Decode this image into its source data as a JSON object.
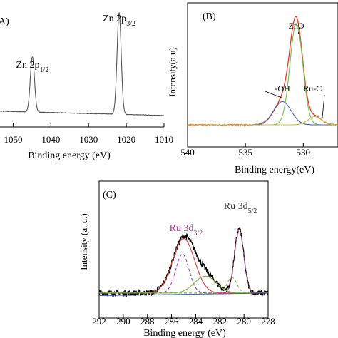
{
  "chart_data": [
    {
      "panel": "(A)",
      "panel_label": "A)",
      "type": "line",
      "xlabel": "Binding energy (eV)",
      "ylabel": "",
      "xlim": [
        1055,
        1010
      ],
      "xticks": [
        1050,
        1040,
        1030,
        1020,
        1010
      ],
      "annotations": [
        {
          "text": "Zn 2p",
          "sub": "1/2",
          "x": 1044.9
        },
        {
          "text": "Zn 2p",
          "sub": "3/2",
          "x": 1021.9
        }
      ],
      "series": [
        {
          "color": "#555555",
          "peaks": [
            {
              "center": 1044.9,
              "height": 0.5,
              "width": 0.55
            },
            {
              "center": 1021.9,
              "height": 0.92,
              "width": 0.55
            }
          ],
          "baseline": [
            0.06,
            0.02
          ]
        }
      ]
    },
    {
      "panel": "(B)",
      "panel_label": "(B)",
      "type": "line",
      "xlabel": "Binding energy(eV)",
      "ylabel": "Intensity(a.u)",
      "xlim": [
        540,
        527
      ],
      "xticks": [
        540,
        535,
        530
      ],
      "annotations": [
        {
          "text": "ZnO",
          "x": 530.6
        },
        {
          "text": "-OH",
          "x": 531.8
        },
        {
          "text": "Ru-C",
          "x": 529.2
        }
      ],
      "series": [
        {
          "color": "#e8722a",
          "role": "raw",
          "peaks": [
            {
              "center": 530.6,
              "height": 0.74,
              "width": 0.55
            },
            {
              "center": 531.8,
              "height": 0.17,
              "width": 0.75
            },
            {
              "center": 529.0,
              "height": 0.06,
              "width": 0.6
            }
          ],
          "baseline": 0.13
        },
        {
          "color": "#e23b3b",
          "role": "envelope",
          "peaks": [
            {
              "center": 530.6,
              "height": 0.74,
              "width": 0.55
            },
            {
              "center": 531.8,
              "height": 0.17,
              "width": 0.75
            },
            {
              "center": 529.0,
              "height": 0.06,
              "width": 0.6
            }
          ],
          "baseline": 0.13
        },
        {
          "color": "#76c043",
          "role": "component",
          "peaks": [
            {
              "center": 530.6,
              "height": 0.74,
              "width": 0.55
            }
          ],
          "baseline": 0.13
        },
        {
          "color": "#4a63b5",
          "role": "component",
          "peaks": [
            {
              "center": 531.8,
              "height": 0.17,
              "width": 0.75
            }
          ],
          "baseline": 0.13
        },
        {
          "color": "#c9c23a",
          "role": "component",
          "peaks": [
            {
              "center": 529.0,
              "height": 0.06,
              "width": 0.6
            }
          ],
          "baseline": 0.13
        }
      ]
    },
    {
      "panel": "(C)",
      "panel_label": "(C)",
      "type": "line",
      "xlabel": "Binding energy (eV)",
      "ylabel": "Intensity (a. u.)",
      "xlim": [
        292,
        278
      ],
      "xticks": [
        292,
        290,
        288,
        286,
        284,
        282,
        280,
        278
      ],
      "annotations": [
        {
          "text": "Ru 3d",
          "sub": "5/2",
          "x": 280.3,
          "color": "#333333"
        },
        {
          "text": "Ru 3d",
          "sub": "3/2",
          "x": 284.8,
          "color": "#b43a9a"
        }
      ],
      "series": [
        {
          "color": "#000000",
          "role": "raw",
          "peaks": [
            {
              "center": 285.0,
              "height": 0.42,
              "width": 0.9
            },
            {
              "center": 283.2,
              "height": 0.13,
              "width": 0.9
            },
            {
              "center": 280.4,
              "height": 0.49,
              "width": 0.38
            }
          ],
          "baseline": 0.16
        },
        {
          "color": "#e23b3b",
          "role": "component",
          "peaks": [
            {
              "center": 285.0,
              "height": 0.42,
              "width": 0.9
            }
          ],
          "baseline": 0.16
        },
        {
          "color": "#b43a9a",
          "role": "component",
          "dashed": true,
          "peaks": [
            {
              "center": 285.1,
              "height": 0.3,
              "width": 0.55
            }
          ],
          "baseline": 0.16
        },
        {
          "color": "#76c043",
          "role": "component",
          "peaks": [
            {
              "center": 283.2,
              "height": 0.13,
              "width": 0.9
            }
          ],
          "baseline": 0.16
        },
        {
          "color": "#b43a9a",
          "role": "component",
          "dashed": true,
          "peaks": [
            {
              "center": 280.4,
              "height": 0.49,
              "width": 0.38
            }
          ],
          "baseline": 0.16
        },
        {
          "color": "#76c043",
          "role": "component",
          "dashed": true,
          "peaks": [
            {
              "center": 281.0,
              "height": 0.12,
              "width": 0.4
            }
          ],
          "baseline": 0.16
        },
        {
          "color": "#4a63b5",
          "role": "background",
          "peaks": [],
          "baseline": 0.16
        }
      ]
    }
  ]
}
